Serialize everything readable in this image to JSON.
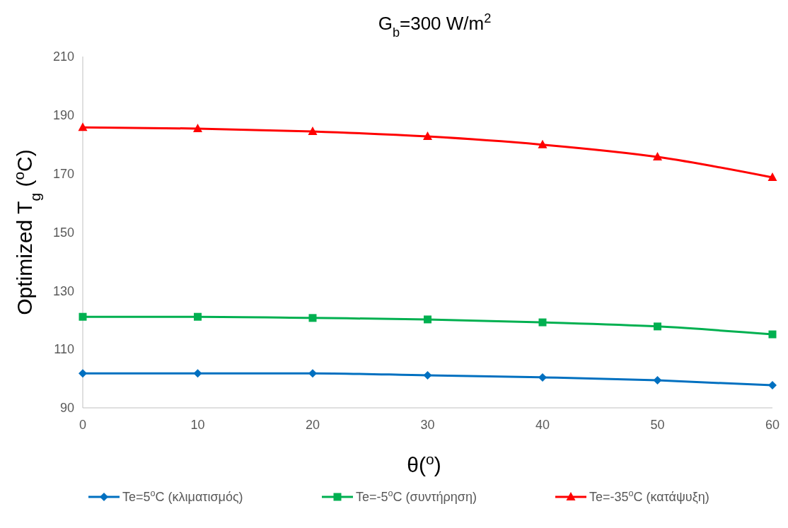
{
  "chart_data": {
    "type": "line",
    "title": "G$_{b}$=300 W/m$^{2}$",
    "xlabel": "θ($^{o}$)",
    "ylabel": "Optimized T$_{g}$ ($^{o}$C)",
    "x": [
      0,
      10,
      20,
      30,
      40,
      50,
      60
    ],
    "series": [
      {
        "name": "Te=5$^{o}$C (κλιματισμός)",
        "color": "#0070c0",
        "marker": "diamond",
        "values": [
          101.8,
          101.8,
          101.8,
          101.1,
          100.4,
          99.4,
          97.7
        ]
      },
      {
        "name": "Te=-5$^{o}$C (συντήρηση)",
        "color": "#00b050",
        "marker": "square",
        "values": [
          121.1,
          121.1,
          120.7,
          120.2,
          119.2,
          117.8,
          115.1
        ]
      },
      {
        "name": "Te=-35$^{o}$C (κατάψυξη)",
        "color": "#ff0000",
        "marker": "triangle",
        "values": [
          185.8,
          185.4,
          184.4,
          182.7,
          179.9,
          175.7,
          168.7
        ]
      }
    ],
    "xlim": [
      0,
      60
    ],
    "xticks": [
      0,
      10,
      20,
      30,
      40,
      50,
      60
    ],
    "ylim": [
      90,
      210
    ],
    "yticks": [
      90,
      110,
      130,
      150,
      170,
      190,
      210
    ],
    "grid": false,
    "legend": "bottom",
    "line_style": "solid"
  }
}
